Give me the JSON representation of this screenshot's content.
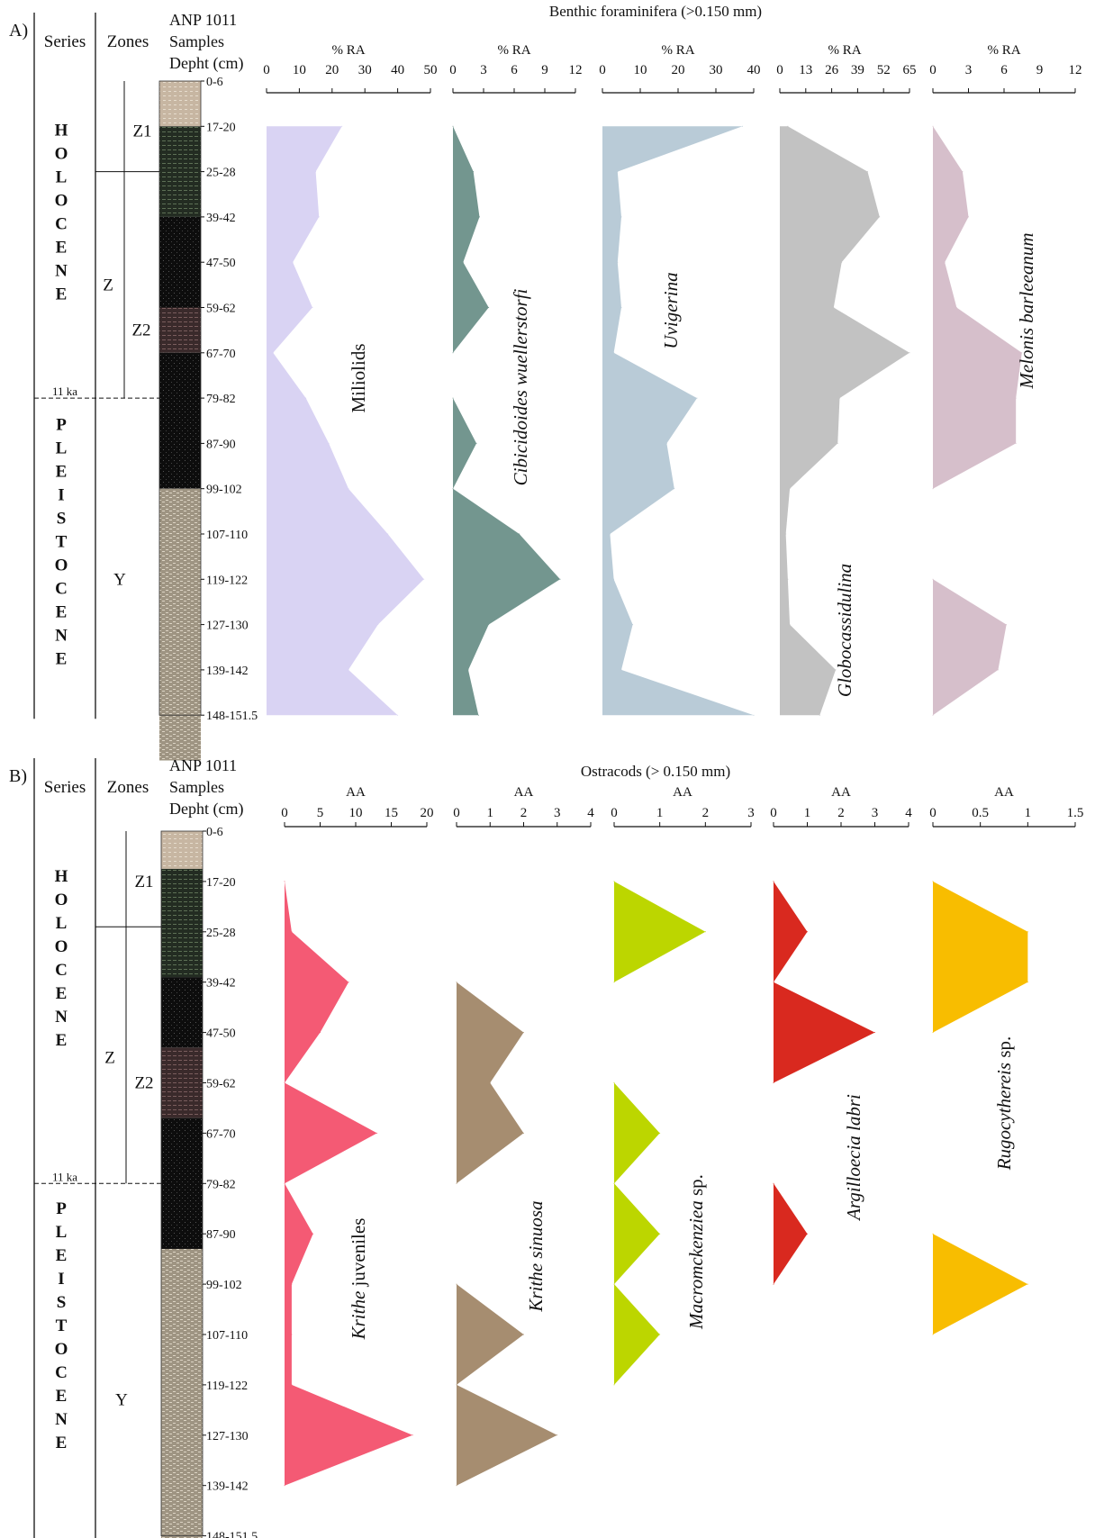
{
  "colors": {
    "miliolids": "#d9d3f3",
    "cibicidoides": "#73968f",
    "uvigerina": "#b9cbd7",
    "globocassidulina": "#c2c2c2",
    "melonis": "#d6bfcb",
    "krithe_juv": "#f45a74",
    "krithe_sinuosa": "#a68d70",
    "macromckenziea": "#bcd600",
    "argilloecia": "#d9291f",
    "rugocythereis": "#f8bd00",
    "sed_light": "#a49a88",
    "sed_dark": "#111111",
    "sed_green": "#273326",
    "sed_brown": "#3b2b2b",
    "sed_top": "#c9b7a3"
  },
  "chart_data": [
    {
      "type": "area",
      "panel_label": "A)",
      "title": "Benthic foraminifera (>0.150 mm)",
      "column_headers": {
        "series": "Series",
        "zones": "Zones",
        "samples": "ANP 1011\nSamples\nDepht (cm)"
      },
      "series_labels": [
        {
          "text": "H\nO\nL\nO\nC\nE\nN\nE"
        },
        {
          "text": "P\nL\nE\nI\nS\nT\nO\nC\nE\nN\nE"
        }
      ],
      "zone_labels": [
        "Z1",
        "Z",
        "Z2",
        "Y"
      ],
      "age_marker": "11 ka",
      "depths": [
        "0-6",
        "17-20",
        "25-28",
        "39-42",
        "47-50",
        "59-62",
        "67-70",
        "79-82",
        "87-90",
        "99-102",
        "107-110",
        "119-122",
        "127-130",
        "139-142",
        "148-151.5"
      ],
      "series": [
        {
          "name": "Miliolids",
          "axis_label": "% RA",
          "ticks": [
            "0",
            "10",
            "20",
            "30",
            "40",
            "50"
          ],
          "xlim": [
            0,
            50
          ],
          "values": [
            null,
            23,
            15,
            16,
            8,
            14,
            2,
            12,
            19,
            25,
            37,
            48,
            34,
            25,
            40
          ]
        },
        {
          "name": "Cibicidoides wuellerstorfi",
          "axis_label": "% RA",
          "ticks": [
            "0",
            "3",
            "6",
            "9",
            "12"
          ],
          "xlim": [
            0,
            12
          ],
          "values": [
            null,
            0,
            2,
            2.6,
            1,
            3.5,
            0,
            0,
            2.3,
            0,
            6.5,
            10.5,
            3.5,
            1.5,
            2.5
          ]
        },
        {
          "name": "Uvigerina",
          "axis_label": "% RA",
          "ticks": [
            "0",
            "10",
            "20",
            "30",
            "40"
          ],
          "xlim": [
            0,
            40
          ],
          "values": [
            null,
            37,
            4,
            5,
            4,
            5,
            3,
            25,
            17,
            19,
            2,
            3,
            8,
            5,
            40
          ]
        },
        {
          "name": "Globocassidulina",
          "axis_label": "% RA",
          "ticks": [
            "0",
            "13",
            "26",
            "39",
            "52",
            "65"
          ],
          "xlim": [
            0,
            65
          ],
          "values": [
            null,
            4,
            44,
            50,
            31,
            27,
            65,
            30,
            29,
            5,
            3,
            4,
            5,
            28,
            20
          ]
        },
        {
          "name": "Melonis barleeanum",
          "axis_label": "% RA",
          "ticks": [
            "0",
            "3",
            "6",
            "9",
            "12"
          ],
          "xlim": [
            0,
            12
          ],
          "values": [
            null,
            0,
            2.5,
            3,
            1,
            2,
            7.5,
            7,
            7,
            0,
            null,
            0,
            6.2,
            5.5,
            0
          ]
        }
      ]
    },
    {
      "type": "area",
      "panel_label": "B)",
      "title": "Ostracods (> 0.150 mm)",
      "column_headers": {
        "series": "Series",
        "zones": "Zones",
        "samples": "ANP 1011\nSamples\nDepht (cm)"
      },
      "series_labels": [
        {
          "text": "H\nO\nL\nO\nC\nE\nN\nE"
        },
        {
          "text": "P\nL\nE\nI\nS\nT\nO\nC\nE\nN\nE"
        }
      ],
      "zone_labels": [
        "Z1",
        "Z",
        "Z2",
        "Y"
      ],
      "age_marker": "11 ka",
      "depths": [
        "0-6",
        "17-20",
        "25-28",
        "39-42",
        "47-50",
        "59-62",
        "67-70",
        "79-82",
        "87-90",
        "99-102",
        "107-110",
        "119-122",
        "127-130",
        "139-142",
        "148-151.5"
      ],
      "series": [
        {
          "name": "Krithe juveniles",
          "axis_label": "AA",
          "ticks": [
            "0",
            "5",
            "10",
            "15",
            "20"
          ],
          "xlim": [
            0,
            20
          ],
          "values": [
            null,
            0,
            1,
            9,
            5,
            0,
            13,
            0,
            4,
            1,
            1,
            1,
            18,
            0,
            null
          ]
        },
        {
          "name": "Krithe sinuosa",
          "axis_label": "AA",
          "ticks": [
            "0",
            "1",
            "2",
            "3",
            "4"
          ],
          "xlim": [
            0,
            4
          ],
          "values": [
            null,
            null,
            null,
            0,
            2,
            1,
            2,
            0,
            null,
            0,
            2,
            0,
            3,
            0,
            null
          ]
        },
        {
          "name": "Macromckenziea sp.",
          "axis_label": "AA",
          "ticks": [
            "0",
            "1",
            "2",
            "3"
          ],
          "xlim": [
            0,
            3
          ],
          "values": [
            null,
            0,
            2,
            0,
            null,
            0,
            1,
            0,
            1,
            0,
            1,
            0,
            null,
            null,
            null
          ]
        },
        {
          "name": "Argilloecia labri",
          "axis_label": "AA",
          "ticks": [
            "0",
            "1",
            "2",
            "3",
            "4"
          ],
          "xlim": [
            0,
            4
          ],
          "values": [
            null,
            0,
            1,
            0,
            3,
            0,
            null,
            0,
            1,
            0,
            null,
            null,
            null,
            null,
            null
          ]
        },
        {
          "name": "Rugocythereis sp.",
          "axis_label": "AA",
          "ticks": [
            "0",
            "0.5",
            "1",
            "1.5"
          ],
          "xlim": [
            0,
            1.5
          ],
          "values": [
            null,
            0,
            1,
            1,
            0,
            null,
            null,
            null,
            0,
            1,
            0,
            null,
            null,
            null,
            null
          ]
        }
      ]
    }
  ]
}
